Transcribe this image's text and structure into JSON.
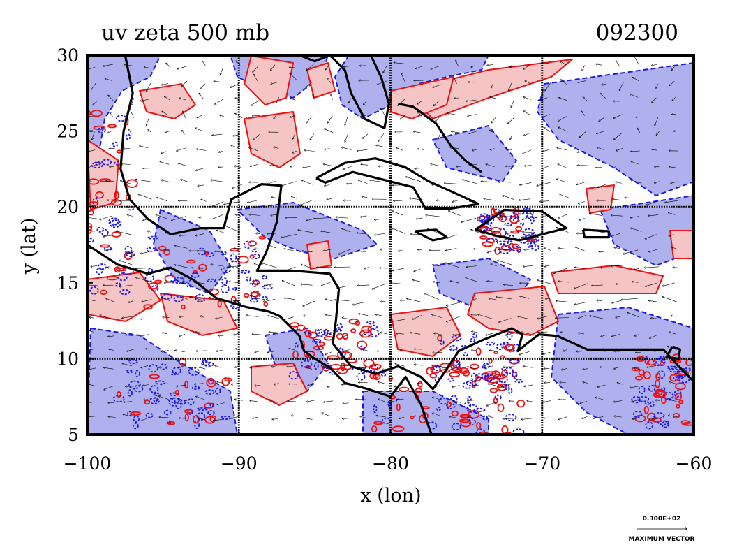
{
  "title_left": "uv zeta 500 mb",
  "title_right": "092300",
  "x_axis": {
    "label": "x (lon)",
    "range": [
      -100,
      -60
    ],
    "ticks": [
      "−100",
      "−90",
      "−80",
      "−70",
      "−60"
    ],
    "tick_values": [
      -100,
      -90,
      -80,
      -70,
      -60
    ]
  },
  "y_axis": {
    "label": "y (lat)",
    "range": [
      5,
      30
    ],
    "ticks": [
      "5",
      "10",
      "15",
      "20",
      "25",
      "30"
    ],
    "tick_values": [
      5,
      10,
      15,
      20,
      25,
      30
    ]
  },
  "grid_lines_lon": [
    -90,
    -80,
    -70
  ],
  "grid_lines_lat": [
    10,
    20
  ],
  "colors": {
    "positive_fill": "#f5c4c4",
    "positive_line": "#ee1111",
    "negative_fill": "#aeb1ee",
    "negative_line": "#1a1aee",
    "coast": "#000000",
    "vector": "#000000"
  },
  "max_vector": {
    "value_label": "0.300E+02",
    "caption": "MAXIMUM VECTOR"
  }
}
